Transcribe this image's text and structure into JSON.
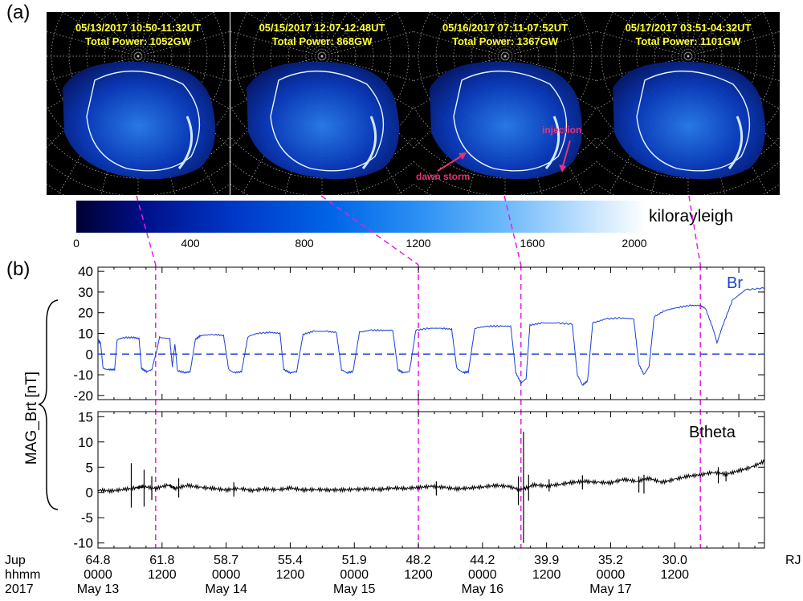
{
  "panel_labels": {
    "a": "(a)",
    "b": "(b)"
  },
  "aurora_panels": [
    {
      "date_line": "05/13/2017 10:50-11:32UT",
      "power_line": "Total Power: 1052GW"
    },
    {
      "date_line": "05/15/2017 12:07-12:48UT",
      "power_line": "Total Power: 868GW"
    },
    {
      "date_line": "05/16/2017 07:11-07:52UT",
      "power_line": "Total Power: 1367GW"
    },
    {
      "date_line": "05/17/2017 03:51-04:32UT",
      "power_line": "Total Power: 1101GW"
    }
  ],
  "annotations": {
    "injection": "injection",
    "dawn_storm": "dawn storm"
  },
  "colorbar": {
    "unit": "kilorayleigh",
    "ticks": [
      "0",
      "400",
      "800",
      "1200",
      "1600",
      "2000"
    ],
    "range": [
      0,
      2000
    ]
  },
  "colors": {
    "br_line": "#1a3fd6",
    "btheta_line": "#000000",
    "guide_dash": "#e61ee6",
    "title_yellow": "#ffff33",
    "annotation_pink": "#e8327a"
  },
  "chart_data": [
    {
      "type": "line",
      "series": [
        {
          "name": "Br",
          "key": "br"
        }
      ],
      "ylim": [
        -22,
        42
      ],
      "yticks": [
        "40",
        "30",
        "20",
        "10",
        "0",
        "-10",
        "-20"
      ],
      "ylabel": "MAG_Brt [nT]",
      "zero_line": "dashed",
      "br": [
        [
          13.0,
          6.5
        ],
        [
          13.02,
          5.5
        ],
        [
          13.04,
          -7.0
        ],
        [
          13.08,
          -7.5
        ],
        [
          13.13,
          -7.5
        ],
        [
          13.15,
          7.0
        ],
        [
          13.2,
          8.0
        ],
        [
          13.28,
          8.0
        ],
        [
          13.32,
          7.5
        ],
        [
          13.34,
          -7.0
        ],
        [
          13.38,
          -8.5
        ],
        [
          13.42,
          -7.5
        ],
        [
          13.46,
          2.0
        ],
        [
          13.48,
          8.0
        ],
        [
          13.56,
          7.5
        ],
        [
          13.58,
          -6.0
        ],
        [
          13.6,
          5.0
        ],
        [
          13.62,
          -8.0
        ],
        [
          13.68,
          -9.0
        ],
        [
          13.72,
          -8.5
        ],
        [
          13.76,
          7.0
        ],
        [
          13.8,
          9.0
        ],
        [
          13.9,
          9.5
        ],
        [
          13.98,
          9.0
        ],
        [
          14.02,
          -7.5
        ],
        [
          14.06,
          -9.0
        ],
        [
          14.12,
          -8.5
        ],
        [
          14.17,
          8.5
        ],
        [
          14.24,
          10.0
        ],
        [
          14.34,
          10.5
        ],
        [
          14.42,
          10.0
        ],
        [
          14.45,
          -7.5
        ],
        [
          14.5,
          -9.0
        ],
        [
          14.55,
          -8.5
        ],
        [
          14.6,
          9.5
        ],
        [
          14.68,
          11.0
        ],
        [
          14.78,
          11.0
        ],
        [
          14.86,
          10.5
        ],
        [
          14.9,
          -7.5
        ],
        [
          14.94,
          -9.0
        ],
        [
          14.99,
          -8.5
        ],
        [
          15.04,
          10.5
        ],
        [
          15.12,
          11.5
        ],
        [
          15.22,
          11.5
        ],
        [
          15.3,
          11.5
        ],
        [
          15.34,
          -7.5
        ],
        [
          15.38,
          -9.0
        ],
        [
          15.43,
          -8.5
        ],
        [
          15.48,
          11.5
        ],
        [
          15.58,
          12.5
        ],
        [
          15.68,
          12.5
        ],
        [
          15.76,
          12.0
        ],
        [
          15.8,
          -7.0
        ],
        [
          15.85,
          -9.0
        ],
        [
          15.89,
          -8.5
        ],
        [
          15.94,
          12.5
        ],
        [
          16.04,
          13.5
        ],
        [
          16.14,
          13.5
        ],
        [
          16.22,
          13.5
        ],
        [
          16.26,
          -9.0
        ],
        [
          16.3,
          -14.0
        ],
        [
          16.34,
          -12.0
        ],
        [
          16.37,
          14.0
        ],
        [
          16.46,
          15.0
        ],
        [
          16.58,
          15.0
        ],
        [
          16.7,
          14.5
        ],
        [
          16.74,
          -10.0
        ],
        [
          16.78,
          -15.0
        ],
        [
          16.82,
          -13.0
        ],
        [
          16.86,
          15.0
        ],
        [
          16.96,
          17.0
        ],
        [
          17.08,
          17.5
        ],
        [
          17.18,
          17.0
        ],
        [
          17.22,
          -5.0
        ],
        [
          17.26,
          -10.0
        ],
        [
          17.3,
          -6.0
        ],
        [
          17.34,
          18.0
        ],
        [
          17.42,
          21.0
        ],
        [
          17.52,
          22.5
        ],
        [
          17.62,
          23.5
        ],
        [
          17.7,
          23.5
        ],
        [
          17.74,
          22.0
        ],
        [
          17.8,
          12.0
        ],
        [
          17.83,
          5.5
        ],
        [
          17.87,
          13.0
        ],
        [
          17.95,
          26.0
        ],
        [
          18.05,
          31.0
        ],
        [
          18.2,
          32.0
        ]
      ]
    },
    {
      "type": "line",
      "series": [
        {
          "name": "Btheta",
          "key": "bt"
        }
      ],
      "ylim": [
        -11,
        16
      ],
      "yticks": [
        "15",
        "10",
        "5",
        "0",
        "-5",
        "-10"
      ],
      "bt": [
        [
          13.0,
          0.5
        ],
        [
          13.1,
          0.3
        ],
        [
          13.2,
          0.6
        ],
        [
          13.3,
          0.9
        ],
        [
          13.35,
          1.2
        ],
        [
          13.45,
          0.8
        ],
        [
          13.55,
          1.5
        ],
        [
          13.6,
          0.8
        ],
        [
          13.7,
          1.4
        ],
        [
          13.8,
          1.0
        ],
        [
          13.9,
          0.8
        ],
        [
          14.0,
          0.5
        ],
        [
          14.1,
          0.8
        ],
        [
          14.2,
          0.4
        ],
        [
          14.3,
          0.7
        ],
        [
          14.4,
          0.5
        ],
        [
          14.5,
          0.9
        ],
        [
          14.6,
          0.5
        ],
        [
          14.7,
          0.6
        ],
        [
          14.8,
          0.5
        ],
        [
          14.9,
          0.5
        ],
        [
          15.0,
          0.6
        ],
        [
          15.1,
          0.7
        ],
        [
          15.2,
          0.6
        ],
        [
          15.3,
          0.9
        ],
        [
          15.4,
          0.8
        ],
        [
          15.5,
          1.0
        ],
        [
          15.6,
          1.2
        ],
        [
          15.7,
          1.0
        ],
        [
          15.8,
          0.7
        ],
        [
          15.9,
          0.9
        ],
        [
          16.0,
          1.1
        ],
        [
          16.1,
          1.4
        ],
        [
          16.2,
          1.2
        ],
        [
          16.3,
          0.5
        ],
        [
          16.4,
          1.5
        ],
        [
          16.5,
          1.3
        ],
        [
          16.6,
          1.6
        ],
        [
          16.7,
          2.0
        ],
        [
          16.8,
          2.2
        ],
        [
          16.9,
          2.0
        ],
        [
          17.0,
          1.9
        ],
        [
          17.1,
          2.6
        ],
        [
          17.2,
          2.2
        ],
        [
          17.3,
          2.8
        ],
        [
          17.4,
          2.0
        ],
        [
          17.5,
          2.6
        ],
        [
          17.6,
          3.2
        ],
        [
          17.7,
          3.5
        ],
        [
          17.8,
          4.0
        ],
        [
          17.9,
          3.6
        ],
        [
          18.0,
          4.3
        ],
        [
          18.1,
          5.0
        ],
        [
          18.2,
          6.2
        ]
      ],
      "spikes": [
        [
          13.26,
          5.8,
          -3.0
        ],
        [
          13.36,
          4.5,
          -2.8
        ],
        [
          13.42,
          3.2,
          -1.5
        ],
        [
          13.63,
          2.8,
          -1.0
        ],
        [
          14.06,
          2.0,
          -0.8
        ],
        [
          15.64,
          2.2,
          -0.6
        ],
        [
          16.32,
          12.0,
          -10.0
        ],
        [
          16.28,
          3.2,
          -2.5
        ],
        [
          16.36,
          3.5,
          -1.6
        ],
        [
          16.52,
          2.6,
          0.2
        ],
        [
          16.78,
          3.4,
          0.6
        ],
        [
          17.22,
          3.2,
          0.0
        ],
        [
          17.26,
          3.5,
          -0.2
        ],
        [
          17.84,
          5.0,
          1.8
        ],
        [
          17.9,
          4.2,
          2.2
        ]
      ]
    }
  ],
  "x_axis": {
    "row_labels": [
      "Jup",
      "hhmm",
      "2017"
    ],
    "right_label": "RJ",
    "ticks": [
      {
        "t": 13.0,
        "rj": "64.8",
        "hhmm": "0000",
        "date": "May 13"
      },
      {
        "t": 13.5,
        "rj": "61.8",
        "hhmm": "1200",
        "date": ""
      },
      {
        "t": 14.0,
        "rj": "58.7",
        "hhmm": "0000",
        "date": "May 14"
      },
      {
        "t": 14.5,
        "rj": "55.4",
        "hhmm": "1200",
        "date": ""
      },
      {
        "t": 15.0,
        "rj": "51.9",
        "hhmm": "0000",
        "date": "May 15"
      },
      {
        "t": 15.5,
        "rj": "48.2",
        "hhmm": "1200",
        "date": ""
      },
      {
        "t": 16.0,
        "rj": "44.2",
        "hhmm": "0000",
        "date": "May 16"
      },
      {
        "t": 16.5,
        "rj": "39.9",
        "hhmm": "1200",
        "date": ""
      },
      {
        "t": 17.0,
        "rj": "35.2",
        "hhmm": "0000",
        "date": "May 17"
      },
      {
        "t": 17.5,
        "rj": "30.0",
        "hhmm": "1200",
        "date": ""
      }
    ],
    "guide_times": [
      13.45,
      15.5,
      16.3,
      17.7
    ]
  }
}
